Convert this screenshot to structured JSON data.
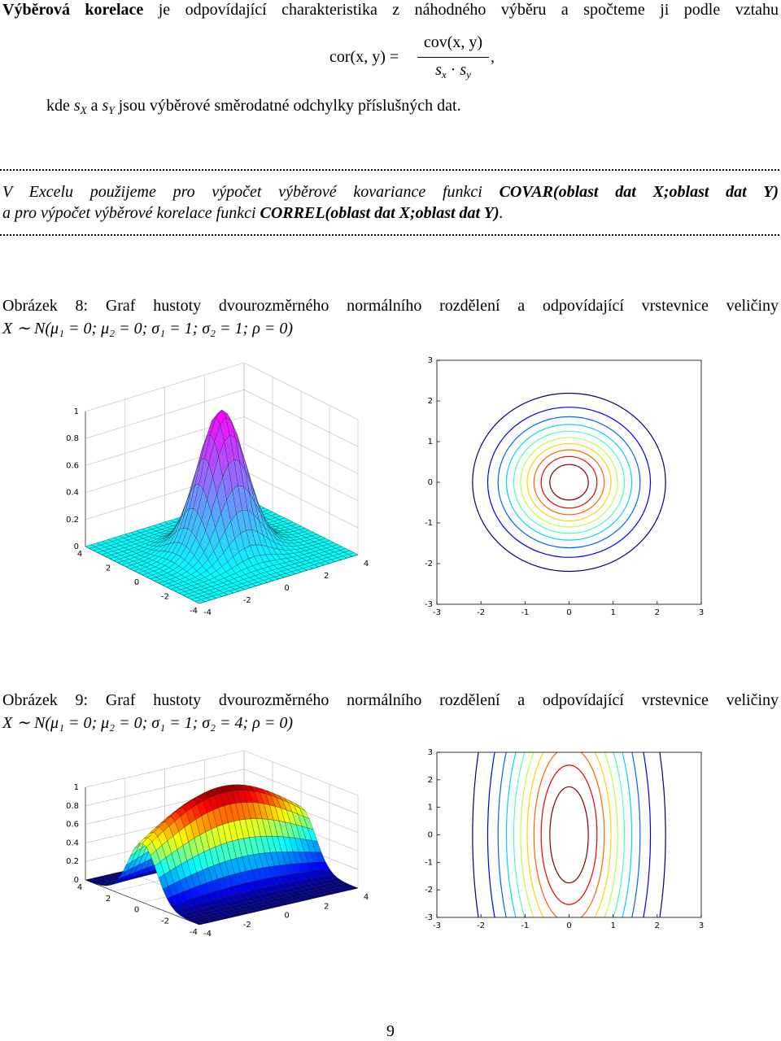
{
  "definition": {
    "term": "Výběrová korelace",
    "text": "je odpovídající charakteristika z náhodného výběru a spočteme ji podle vztahu"
  },
  "formula": {
    "lhs": "cor(x, y) =",
    "numerator": "cov(x, y)",
    "denominator": [
      "s",
      "x",
      "·",
      "s",
      "y"
    ],
    "trailing": ","
  },
  "explanation": [
    "kde",
    "s",
    "X",
    "a",
    "s",
    "Y",
    "jsou výběrové směrodatné odchylky příslušných dat."
  ],
  "excel_note": {
    "lines": [
      [
        {
          "text": "V Excelu použijeme pro výpočet výběrové kovariance funkci",
          "bold": false
        },
        {
          "text": "COVAR(oblast dat X;oblast dat Y)",
          "bold": true
        }
      ],
      [
        {
          "text": "a pro výpočet výběrové korelace funkci",
          "bold": false
        },
        {
          "text": "CORREL(oblast dat X;oblast dat Y)",
          "bold": true
        },
        {
          "text": ".",
          "bold": false
        }
      ]
    ]
  },
  "figures": [
    {
      "caption": {
        "label": "Obrázek 8:",
        "text": "Graf hustoty dvourozměrného normálního rozdělení a odpovídající vrstevnice veličiny",
        "formula": "X ∼ N(μ₁ = 0; μ₂ = 0; σ₁ = 1; σ₂ = 1; ρ = 0)"
      },
      "surface": {
        "zticks": [
          "0",
          "0.2",
          "0.4",
          "0.6",
          "0.8",
          "1"
        ],
        "xticks": [
          "-4",
          "-2",
          "0",
          "2",
          "4"
        ],
        "yticks": [
          "-4",
          "-2",
          "0",
          "2",
          "4"
        ]
      },
      "contour": {
        "xticks": [
          "-3",
          "-2",
          "-1",
          "0",
          "1",
          "2",
          "3"
        ],
        "yticks": [
          "-3",
          "-2",
          "-1",
          "0",
          "1",
          "2",
          "3"
        ]
      }
    },
    {
      "caption": {
        "label": "Obrázek 9:",
        "text": "Graf hustoty dvourozměrného normálního rozdělení a odpovídající vrstevnice veličiny",
        "formula": "X ∼ N(μ₁ = 0; μ₂ = 0; σ₁ = 1; σ₂ = 4; ρ = 0)"
      },
      "surface": {
        "zticks": [
          "0",
          "0.2",
          "0.4",
          "0.6",
          "0.8",
          "1"
        ],
        "xticks": [
          "-4",
          "-2",
          "0",
          "2",
          "4"
        ],
        "yticks": [
          "-4",
          "-2",
          "0",
          "2",
          "4"
        ]
      },
      "contour": {
        "xticks": [
          "-3",
          "-2",
          "-1",
          "0",
          "1",
          "2",
          "3"
        ],
        "yticks": [
          "-3",
          "-2",
          "-1",
          "0",
          "1",
          "2",
          "3"
        ]
      }
    }
  ],
  "page_number": "9"
}
